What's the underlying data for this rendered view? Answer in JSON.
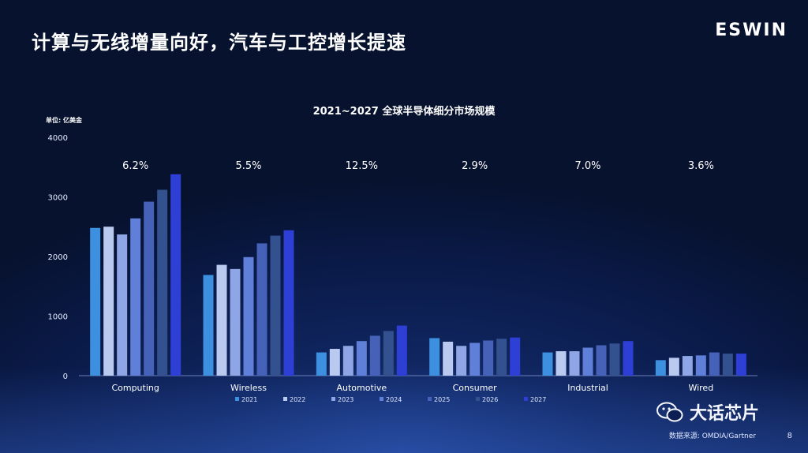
{
  "slide": {
    "title": "计算与无线增量向好，汽车与工控增长提速",
    "logo": "ESWIN",
    "watermark": "大话芯片",
    "source": "数据来源: OMDIA/Gartner",
    "page_number": "8"
  },
  "chart_data": {
    "type": "bar",
    "title": "2021~2027 全球半导体细分市场规模",
    "unit_label": "单位: 亿美金",
    "ylim": [
      0,
      4000
    ],
    "yticks": [
      "0",
      "1000",
      "2000",
      "3000",
      "4000"
    ],
    "categories": [
      "Computing",
      "Wireless",
      "Automotive",
      "Consumer",
      "Industrial",
      "Wired"
    ],
    "growth_labels": [
      "6.2%",
      "5.5%",
      "12.5%",
      "2.9%",
      "7.0%",
      "3.6%"
    ],
    "series": [
      {
        "name": "2021",
        "color": "#3d8fe0",
        "values": [
          2480,
          1690,
          390,
          630,
          390,
          260
        ]
      },
      {
        "name": "2022",
        "color": "#b9c9ef",
        "values": [
          2500,
          1860,
          450,
          570,
          410,
          300
        ]
      },
      {
        "name": "2023",
        "color": "#8ea6e6",
        "values": [
          2370,
          1790,
          500,
          500,
          410,
          330
        ]
      },
      {
        "name": "2024",
        "color": "#5f7fd8",
        "values": [
          2640,
          1990,
          580,
          550,
          470,
          340
        ]
      },
      {
        "name": "2025",
        "color": "#4561b8",
        "values": [
          2920,
          2220,
          670,
          590,
          510,
          390
        ]
      },
      {
        "name": "2026",
        "color": "#33508f",
        "values": [
          3120,
          2350,
          750,
          620,
          540,
          370
        ]
      },
      {
        "name": "2027",
        "color": "#2e3fd6",
        "values": [
          3380,
          2440,
          840,
          640,
          580,
          370
        ]
      }
    ],
    "legend_position": "bottom",
    "grid": false
  }
}
